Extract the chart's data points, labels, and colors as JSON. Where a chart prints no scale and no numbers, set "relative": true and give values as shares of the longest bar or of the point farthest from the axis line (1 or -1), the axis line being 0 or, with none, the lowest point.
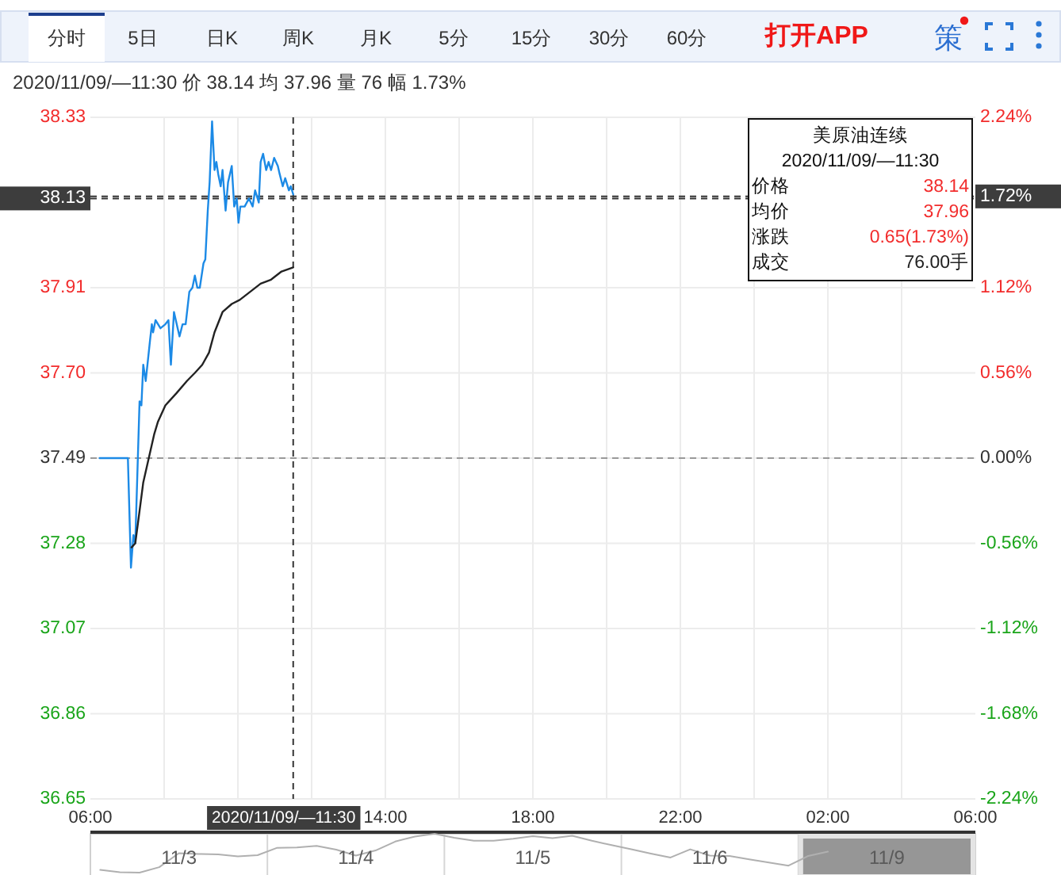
{
  "chart_data": [
    {
      "type": "line",
      "annotations": [
        "分时",
        "5日",
        "日K",
        "周K",
        "月K",
        "5分",
        "15分",
        "30分",
        "60分",
        "打开APP",
        "策",
        "2020/11/09/—11:30 价 38.14 均 37.96 量 76 幅 1.73%",
        "美原油连续",
        "2020/11/09/—11:30",
        "价格",
        "38.14",
        "均价",
        "37.96",
        "涨跌",
        "0.65(1.73%)",
        "成交",
        "76.00手"
      ],
      "series": [
        {
          "color": "#1c8ae6",
          "x": [
            "2020-11-09T06:15",
            "2020-11-09T07:01",
            "2020-11-09T07:06",
            "2020-11-09T07:10",
            "2020-11-09T07:13",
            "2020-11-09T07:20",
            "2020-11-09T07:23",
            "2020-11-09T07:26",
            "2020-11-09T07:30",
            "2020-11-09T07:37",
            "2020-11-09T07:40",
            "2020-11-09T07:42",
            "2020-11-09T07:46",
            "2020-11-09T07:54",
            "2020-11-09T08:02",
            "2020-11-09T08:07",
            "2020-11-09T08:11",
            "2020-11-09T08:16",
            "2020-11-09T08:22",
            "2020-11-09T08:25",
            "2020-11-09T08:30",
            "2020-11-09T08:35",
            "2020-11-09T08:41",
            "2020-11-09T08:46",
            "2020-11-09T08:50",
            "2020-11-09T08:54",
            "2020-11-09T08:58",
            "2020-11-09T09:04",
            "2020-11-09T09:07",
            "2020-11-09T09:11",
            "2020-11-09T09:14",
            "2020-11-09T09:18",
            "2020-11-09T09:22",
            "2020-11-09T09:25",
            "2020-11-09T09:28",
            "2020-11-09T09:32",
            "2020-11-09T09:35",
            "2020-11-09T09:40",
            "2020-11-09T09:44",
            "2020-11-09T09:50",
            "2020-11-09T09:54",
            "2020-11-09T09:58",
            "2020-11-09T10:01",
            "2020-11-09T10:04",
            "2020-11-09T10:11",
            "2020-11-09T10:18",
            "2020-11-09T10:24",
            "2020-11-09T10:28",
            "2020-11-09T10:34",
            "2020-11-09T10:37",
            "2020-11-09T10:41",
            "2020-11-09T10:46",
            "2020-11-09T10:50",
            "2020-11-09T10:54",
            "2020-11-09T10:59",
            "2020-11-09T11:05",
            "2020-11-09T11:08",
            "2020-11-09T11:13",
            "2020-11-09T11:17",
            "2020-11-09T11:23",
            "2020-11-09T11:26",
            "2020-11-09T11:30"
          ],
          "values": [
            37.49,
            37.49,
            37.22,
            37.3,
            37.28,
            37.63,
            37.62,
            37.72,
            37.68,
            37.78,
            37.82,
            37.8,
            37.83,
            37.81,
            37.82,
            37.83,
            37.72,
            37.85,
            37.81,
            37.79,
            37.82,
            37.82,
            37.9,
            37.91,
            37.94,
            37.91,
            37.91,
            37.97,
            37.98,
            38.1,
            38.17,
            38.32,
            38.2,
            38.22,
            38.19,
            38.16,
            38.2,
            38.1,
            38.17,
            38.21,
            38.11,
            38.13,
            38.07,
            38.11,
            38.11,
            38.13,
            38.11,
            38.15,
            38.12,
            38.22,
            38.24,
            38.2,
            38.22,
            38.2,
            38.23,
            38.21,
            38.19,
            38.16,
            38.18,
            38.15,
            38.16,
            38.14
          ]
        },
        {
          "color": "#222222",
          "x": [
            "2020-11-09T07:07",
            "2020-11-09T07:13",
            "2020-11-09T07:20",
            "2020-11-09T07:26",
            "2020-11-09T07:35",
            "2020-11-09T07:44",
            "2020-11-09T07:50",
            "2020-11-09T08:02",
            "2020-11-09T08:20",
            "2020-11-09T08:37",
            "2020-11-09T08:50",
            "2020-11-09T09:02",
            "2020-11-09T09:13",
            "2020-11-09T09:22",
            "2020-11-09T09:35",
            "2020-11-09T09:50",
            "2020-11-09T10:03",
            "2020-11-09T10:20",
            "2020-11-09T10:37",
            "2020-11-09T10:54",
            "2020-11-09T11:11",
            "2020-11-09T11:30"
          ],
          "values": [
            37.27,
            37.28,
            37.36,
            37.43,
            37.49,
            37.55,
            37.58,
            37.62,
            37.65,
            37.68,
            37.7,
            37.72,
            37.75,
            37.8,
            37.85,
            37.87,
            37.88,
            37.9,
            37.92,
            37.93,
            37.95,
            37.96
          ]
        }
      ],
      "xlim": [
        "2020-11-09T06:00",
        "2020-11-10T06:00"
      ],
      "xticks": [
        {
          "value": "2020-11-09T06:00",
          "label": "06:00"
        },
        {
          "value": "2020-11-09T08:00",
          "label": null
        },
        {
          "value": "2020-11-09T10:00",
          "label": null
        },
        {
          "value": "2020-11-09T12:00",
          "label": null
        },
        {
          "value": "2020-11-09T14:00",
          "label": "14:00"
        },
        {
          "value": "2020-11-09T16:00",
          "label": null
        },
        {
          "value": "2020-11-09T18:00",
          "label": "18:00"
        },
        {
          "value": "2020-11-09T20:00",
          "label": null
        },
        {
          "value": "2020-11-09T22:00",
          "label": "22:00"
        },
        {
          "value": "2020-11-10T00:00",
          "label": null
        },
        {
          "value": "2020-11-10T02:00",
          "label": "02:00"
        },
        {
          "value": "2020-11-10T04:00",
          "label": null
        },
        {
          "value": "2020-11-10T06:00",
          "label": "06:00"
        }
      ],
      "ylim": [
        36.65,
        38.33
      ],
      "yticks": [
        {
          "value": 38.33,
          "label": "38.33"
        },
        {
          "value": 37.91,
          "label": "37.91"
        },
        {
          "value": 37.7,
          "label": "37.70"
        },
        {
          "value": 37.49,
          "label": "37.49"
        },
        {
          "value": 37.28,
          "label": "37.28"
        },
        {
          "value": 37.07,
          "label": "37.07"
        },
        {
          "value": 36.86,
          "label": "36.86"
        },
        {
          "value": 36.65,
          "label": "36.65"
        }
      ],
      "y2lim": [
        -2.24,
        2.24
      ],
      "y2ticks": [
        {
          "value": 2.24,
          "label": "2.24%"
        },
        {
          "value": 1.12,
          "label": "1.12%"
        },
        {
          "value": 0.56,
          "label": "0.56%"
        },
        {
          "value": 0,
          "label": "0.00%"
        },
        {
          "value": -0.56,
          "label": "-0.56%"
        },
        {
          "value": -1.12,
          "label": "-1.12%"
        },
        {
          "value": -1.68,
          "label": "-1.68%"
        },
        {
          "value": -2.24,
          "label": "-2.24%"
        }
      ],
      "ref_lines": [
        {
          "axis": "y",
          "value": 37.49,
          "color": "#999999",
          "line_style": "dashed"
        },
        {
          "axis": "x",
          "value": "2020-11-09T11:30",
          "label": "2020/11/09/—11:30",
          "color": "#333333",
          "line_style": "dashed"
        },
        {
          "axis": "y",
          "value": 38.13,
          "label": "38.13",
          "color": "#333333",
          "line_style": "dashed"
        },
        {
          "axis": "y2",
          "value": 1.72,
          "label": "1.72%",
          "color": "#333333",
          "line_style": "dashed"
        }
      ],
      "grid": true
    },
    {
      "type": "line",
      "relative": true,
      "categories": [
        null,
        null,
        null,
        null,
        "11/3",
        null,
        null,
        null,
        null,
        null,
        null,
        null,
        null,
        "11/4",
        null,
        null,
        null,
        null,
        null,
        null,
        null,
        null,
        "11/5",
        null,
        null,
        null,
        null,
        null,
        null,
        null,
        null,
        "11/6",
        null,
        null,
        null,
        null,
        null,
        null,
        null,
        null,
        "11/9",
        null,
        null,
        null,
        null
      ],
      "series": [
        {
          "color": "#b0b0b0",
          "values": [
            0.07,
            0.01,
            0.0,
            0.14,
            0.5,
            0.48,
            0.47,
            0.42,
            0.45,
            0.64,
            0.65,
            0.69,
            0.59,
            0.44,
            0.57,
            0.8,
            0.93,
            1.0,
            0.9,
            0.82,
            0.82,
            0.87,
            0.94,
            0.89,
            0.95,
            0.82,
            0.71,
            0.6,
            0.49,
            0.39,
            0.6,
            0.44,
            0.43,
            0.34,
            0.26,
            0.18,
            0.43,
            0.54,
            null,
            null,
            null,
            null,
            null,
            null,
            null
          ]
        }
      ]
    }
  ]
}
